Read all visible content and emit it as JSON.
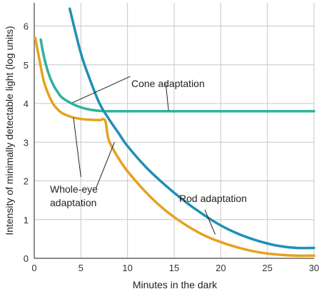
{
  "chart_data": {
    "type": "line",
    "xlabel": "Minutes in the dark",
    "ylabel": "Intensity of minimally detectable light (log units)",
    "xlim": [
      0,
      30
    ],
    "ylim": [
      0,
      6.6
    ],
    "xticks": [
      0,
      5,
      10,
      15,
      20,
      25,
      30
    ],
    "yticks": [
      0,
      1,
      2,
      3,
      4,
      5,
      6
    ],
    "grid": true,
    "colors": {
      "grid": "#c8c8c8",
      "axis": "#444444"
    },
    "series": [
      {
        "name": "Cone adaptation",
        "color": "#2bb39a",
        "x": [
          0.7,
          1.0,
          1.5,
          2.0,
          2.5,
          3.0,
          4.0,
          5.0,
          6.0,
          7.0,
          7.5,
          8.0,
          10,
          15,
          20,
          25,
          30
        ],
        "y": [
          5.65,
          5.25,
          4.8,
          4.5,
          4.3,
          4.15,
          4.0,
          3.9,
          3.84,
          3.81,
          3.8,
          3.8,
          3.8,
          3.8,
          3.8,
          3.8,
          3.8
        ]
      },
      {
        "name": "Rod adaptation",
        "color": "#1f8fb5",
        "x": [
          3.8,
          5,
          6,
          7,
          8,
          9,
          10,
          12,
          14,
          16,
          18,
          20,
          22,
          24,
          26,
          28,
          30
        ],
        "y": [
          6.45,
          5.3,
          4.6,
          4.0,
          3.6,
          3.25,
          2.9,
          2.35,
          1.9,
          1.5,
          1.15,
          0.85,
          0.62,
          0.45,
          0.33,
          0.27,
          0.27
        ]
      },
      {
        "name": "Whole-eye adaptation",
        "color": "#e6a11f",
        "x": [
          0.1,
          0.5,
          1.0,
          1.5,
          2.0,
          2.5,
          3.0,
          4.0,
          5.0,
          6.0,
          7.0,
          7.6,
          8.0,
          9,
          10,
          12,
          14,
          16,
          18,
          20,
          22,
          24,
          26,
          28,
          30
        ],
        "y": [
          5.7,
          5.2,
          4.6,
          4.25,
          4.0,
          3.85,
          3.75,
          3.65,
          3.6,
          3.58,
          3.57,
          3.56,
          3.05,
          2.6,
          2.25,
          1.7,
          1.25,
          0.9,
          0.62,
          0.42,
          0.27,
          0.16,
          0.1,
          0.07,
          0.07
        ]
      }
    ],
    "annotations": {
      "cone": "Cone adaptation",
      "whole_eye_line1": "Whole-eye",
      "whole_eye_line2": "adaptation",
      "rod": "Rod adaptation"
    }
  }
}
